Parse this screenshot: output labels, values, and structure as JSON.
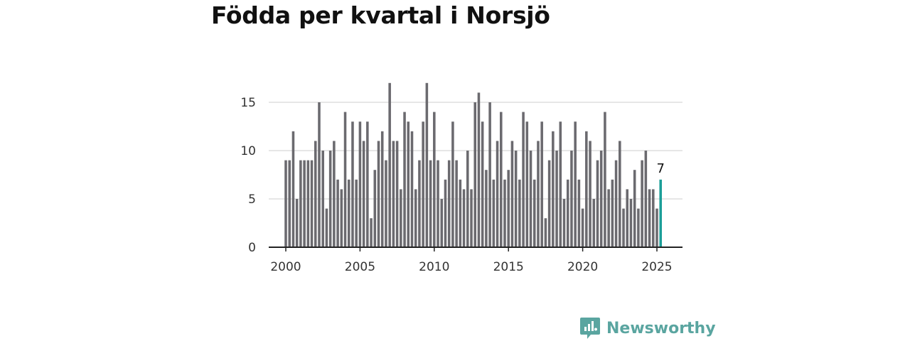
{
  "chart_data": {
    "type": "bar",
    "title": "Födda per kvartal i Norsjö",
    "x_start": 2000.0,
    "x_step": 0.25,
    "values": [
      9,
      9,
      12,
      5,
      9,
      9,
      9,
      9,
      11,
      15,
      10,
      4,
      10,
      11,
      7,
      6,
      14,
      7,
      13,
      7,
      13,
      11,
      13,
      3,
      8,
      11,
      12,
      9,
      17,
      11,
      11,
      6,
      14,
      13,
      12,
      6,
      9,
      13,
      17,
      9,
      14,
      9,
      5,
      7,
      9,
      13,
      9,
      7,
      6,
      10,
      6,
      15,
      16,
      13,
      8,
      15,
      7,
      11,
      14,
      7,
      8,
      11,
      10,
      7,
      14,
      13,
      10,
      7,
      11,
      13,
      3,
      9,
      12,
      10,
      13,
      5,
      7,
      10,
      13,
      7,
      4,
      12,
      11,
      5,
      9,
      10,
      14,
      6,
      7,
      9,
      11,
      4,
      6,
      5,
      8,
      4,
      9,
      10,
      6,
      6,
      4,
      7
    ],
    "highlight_index": 101,
    "highlight_label": "7",
    "xlim": [
      2000,
      2025
    ],
    "ylim": [
      0,
      17.5
    ],
    "x_ticks": [
      "2000",
      "2005",
      "2010",
      "2015",
      "2020",
      "2025"
    ],
    "y_ticks": [
      "0",
      "5",
      "10",
      "15"
    ],
    "grid": true,
    "colors": {
      "bar": "#6b6a6f",
      "highlight": "#1b9e98",
      "grid": "#dddddd",
      "axis": "#222222"
    }
  },
  "brand": {
    "name": "Newsworthy",
    "icon": "newsworthy-logo-icon",
    "color": "#5aa5a0"
  }
}
